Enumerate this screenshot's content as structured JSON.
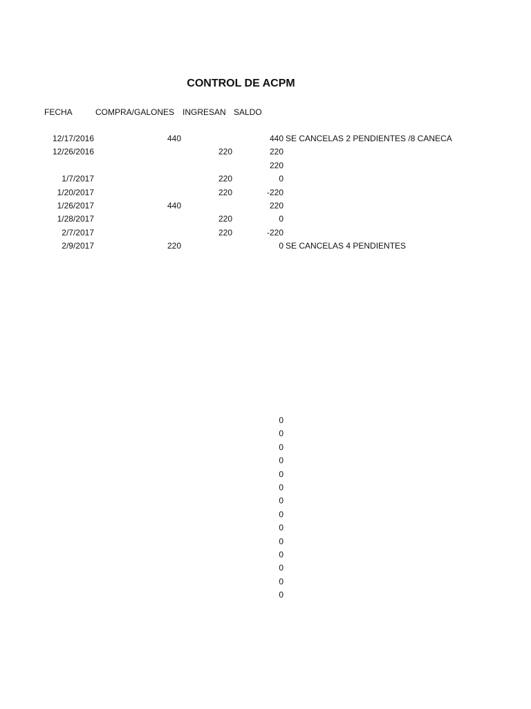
{
  "title": "CONTROL DE ACPM",
  "headers": {
    "fecha": "FECHA",
    "compra": "COMPRA/GALONES",
    "ingresan": "INGRESAN",
    "saldo": "SALDO"
  },
  "rows": [
    {
      "fecha": "12/17/2016",
      "compra": "440",
      "ingresan": "",
      "saldo": "440",
      "note": "SE CANCELAS 2 PENDIENTES /8 CANECA"
    },
    {
      "fecha": "12/26/2016",
      "compra": "",
      "ingresan": "220",
      "saldo": "220",
      "note": ""
    },
    {
      "fecha": "",
      "compra": "",
      "ingresan": "",
      "saldo": "220",
      "note": ""
    },
    {
      "fecha": "1/7/2017",
      "compra": "",
      "ingresan": "220",
      "saldo": "0",
      "note": ""
    },
    {
      "fecha": "1/20/2017",
      "compra": "",
      "ingresan": "220",
      "saldo": "-220",
      "note": ""
    },
    {
      "fecha": "1/26/2017",
      "compra": "440",
      "ingresan": "",
      "saldo": "220",
      "note": ""
    },
    {
      "fecha": "1/28/2017",
      "compra": "",
      "ingresan": "220",
      "saldo": "0",
      "note": ""
    },
    {
      "fecha": "2/7/2017",
      "compra": "",
      "ingresan": "220",
      "saldo": "-220",
      "note": ""
    },
    {
      "fecha": "2/9/2017",
      "compra": "220",
      "ingresan": "",
      "saldo": "0",
      "note": "SE CANCELAS 4 PENDIENTES"
    }
  ],
  "lower_saldo": [
    "0",
    "0",
    "0",
    "0",
    "0",
    "0",
    "0",
    "0",
    "0",
    "0",
    "0",
    "0",
    "0",
    "0"
  ]
}
